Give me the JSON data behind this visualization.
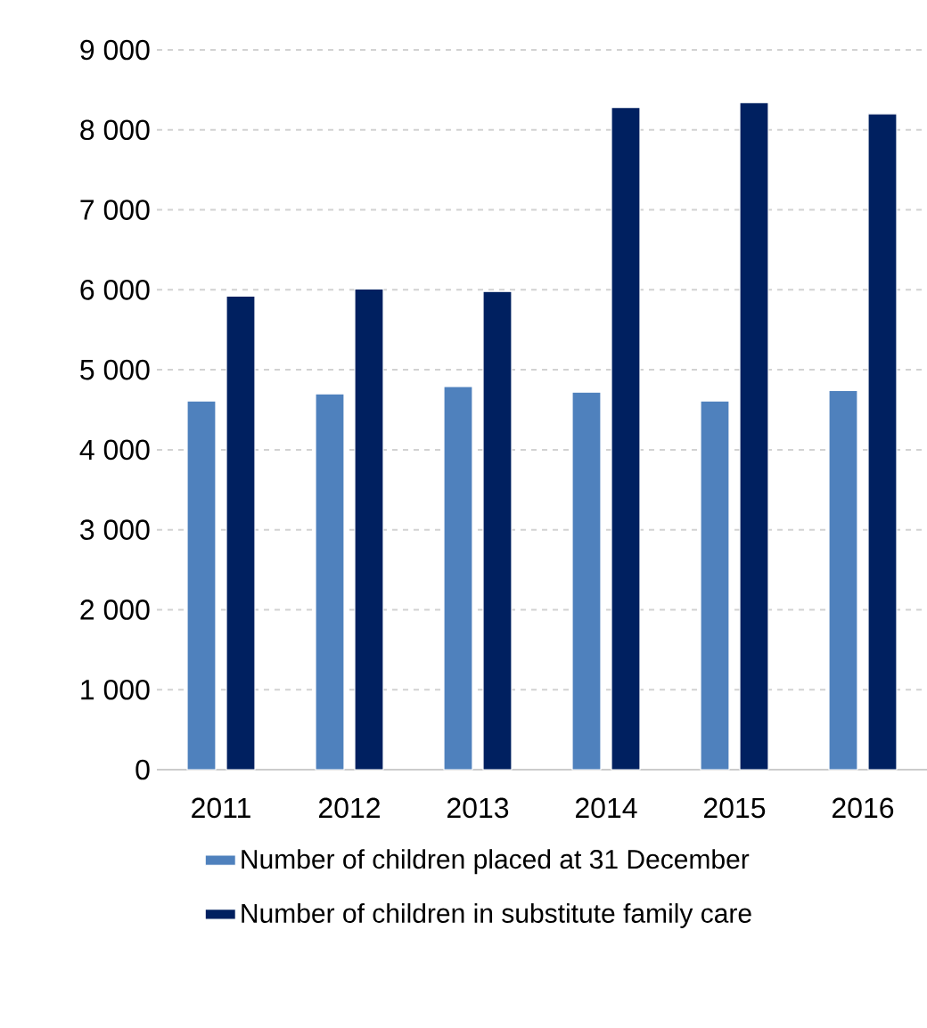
{
  "chart_data": {
    "type": "bar",
    "categories": [
      "2011",
      "2012",
      "2013",
      "2014",
      "2015",
      "2016"
    ],
    "series": [
      {
        "name": "Number of children placed at 31 December",
        "color": "#4f81bd",
        "values": [
          4610,
          4700,
          4790,
          4720,
          4610,
          4740
        ]
      },
      {
        "name": "Number of children in substitute family care",
        "color": "#002060",
        "values": [
          5920,
          6010,
          5980,
          8280,
          8340,
          8200
        ]
      }
    ],
    "ylim": [
      0,
      9000
    ],
    "yticks": [
      0,
      {
        "value": 1000,
        "label": "1 000"
      },
      {
        "value": 2000,
        "label": "2 000"
      },
      {
        "value": 3000,
        "label": "3 000"
      },
      {
        "value": 4000,
        "label": "4 000"
      },
      {
        "value": 5000,
        "label": "5 000"
      },
      {
        "value": 6000,
        "label": "6 000"
      },
      {
        "value": 7000,
        "label": "7 000"
      },
      {
        "value": 8000,
        "label": "8 000"
      },
      {
        "value": 9000,
        "label": "9 000"
      }
    ],
    "grid": "y",
    "legend": "bottom"
  }
}
